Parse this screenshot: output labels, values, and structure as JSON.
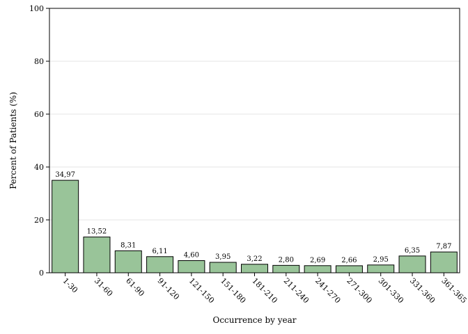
{
  "chart_data": {
    "type": "bar",
    "title": "",
    "xlabel": "Occurrence by year",
    "ylabel": "Percent of Patients (%)",
    "ylim": [
      0,
      100
    ],
    "yticks": [
      0,
      20,
      40,
      60,
      80,
      100
    ],
    "grid": true,
    "legend": "none",
    "bar_color": "#99c499",
    "bar_edge_color": "#000000",
    "categories": [
      "1-30",
      "31-60",
      "61-90",
      "91-120",
      "121-150",
      "151-180",
      "181-210",
      "211-240",
      "241-270",
      "271-300",
      "301-330",
      "331-360",
      "361-365"
    ],
    "values": [
      34.97,
      13.52,
      8.31,
      6.11,
      4.6,
      3.95,
      3.22,
      2.8,
      2.69,
      2.66,
      2.95,
      6.35,
      7.87
    ],
    "value_labels": [
      "34,97",
      "13,52",
      "8,31",
      "6,11",
      "4,60",
      "3,95",
      "3,22",
      "2,80",
      "2,69",
      "2,66",
      "2,95",
      "6,35",
      "7,87"
    ]
  }
}
